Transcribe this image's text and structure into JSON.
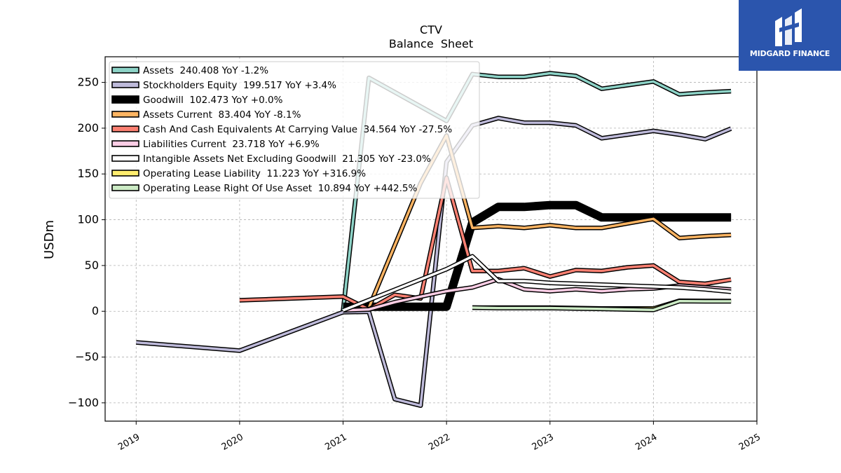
{
  "logo": {
    "text": "MIDGARD FINANCE"
  },
  "chart_data": {
    "type": "line",
    "title": "CTV",
    "subtitle": "Balance  Sheet",
    "xlabel": "",
    "ylabel": "USDm",
    "xlim": [
      2018.7,
      2025.0
    ],
    "ylim": [
      -120,
      278
    ],
    "x_ticks": [
      "2019",
      "2020",
      "2021",
      "2022",
      "2023",
      "2024",
      "2025"
    ],
    "y_ticks": [
      -100,
      -50,
      0,
      50,
      100,
      150,
      200,
      250
    ],
    "y_tick_labels": [
      "−100",
      "−50",
      "0",
      "50",
      "100",
      "150",
      "200",
      "250"
    ],
    "grid": true,
    "legend_position": "top-left",
    "series": [
      {
        "name": "Assets",
        "legend": "Assets  240.408 YoY -1.2%",
        "color": "#8dd3c7",
        "width": 3.5,
        "points": [
          [
            2021.0,
            0.5
          ],
          [
            2021.25,
            255
          ],
          [
            2022.0,
            208
          ],
          [
            2022.25,
            259
          ],
          [
            2022.5,
            256
          ],
          [
            2022.75,
            256
          ],
          [
            2023.0,
            260
          ],
          [
            2023.25,
            257
          ],
          [
            2023.5,
            243
          ],
          [
            2023.75,
            247
          ],
          [
            2024.0,
            251
          ],
          [
            2024.25,
            237
          ],
          [
            2024.5,
            239
          ],
          [
            2024.75,
            240.408
          ]
        ]
      },
      {
        "name": "Stockholders Equity",
        "legend": "Stockholders Equity  199.517 YoY +3.4%",
        "color": "#bebada",
        "width": 3.5,
        "points": [
          [
            2019.0,
            -34
          ],
          [
            2020.0,
            -43
          ],
          [
            2021.0,
            -1
          ],
          [
            2021.25,
            -0.5
          ],
          [
            2021.5,
            -96
          ],
          [
            2021.75,
            -103
          ],
          [
            2022.0,
            163
          ],
          [
            2022.25,
            203
          ],
          [
            2022.5,
            211
          ],
          [
            2022.75,
            206
          ],
          [
            2023.0,
            206
          ],
          [
            2023.25,
            203
          ],
          [
            2023.5,
            189
          ],
          [
            2023.75,
            193
          ],
          [
            2024.0,
            197
          ],
          [
            2024.25,
            193
          ],
          [
            2024.5,
            188
          ],
          [
            2024.75,
            199.517
          ]
        ]
      },
      {
        "name": "Goodwill",
        "legend": "Goodwill  102.473 YoY +0.0%",
        "color": "#000000",
        "width": 9,
        "points": [
          [
            2021.0,
            5
          ],
          [
            2021.25,
            5
          ],
          [
            2021.5,
            5
          ],
          [
            2021.75,
            5
          ],
          [
            2022.0,
            5
          ],
          [
            2022.25,
            97
          ],
          [
            2022.5,
            114
          ],
          [
            2022.75,
            114
          ],
          [
            2023.0,
            116
          ],
          [
            2023.25,
            116
          ],
          [
            2023.5,
            102.473
          ],
          [
            2023.75,
            102.473
          ],
          [
            2024.0,
            102.473
          ],
          [
            2024.25,
            102.473
          ],
          [
            2024.5,
            102.473
          ],
          [
            2024.75,
            102.473
          ]
        ]
      },
      {
        "name": "Assets Current",
        "legend": "Assets Current  83.404 YoY -8.1%",
        "color": "#fdb462",
        "width": 3.5,
        "points": [
          [
            2021.25,
            4
          ],
          [
            2021.75,
            140
          ],
          [
            2022.0,
            192
          ],
          [
            2022.25,
            91
          ],
          [
            2022.5,
            93
          ],
          [
            2022.75,
            91
          ],
          [
            2023.0,
            94
          ],
          [
            2023.25,
            91
          ],
          [
            2023.5,
            91
          ],
          [
            2023.75,
            96
          ],
          [
            2024.0,
            101
          ],
          [
            2024.25,
            80
          ],
          [
            2024.5,
            82
          ],
          [
            2024.75,
            83.404
          ]
        ]
      },
      {
        "name": "Cash And Cash Equivalents At Carrying Value",
        "legend": "Cash And Cash Equivalents At Carrying Value  34.564 YoY -27.5%",
        "color": "#fb8072",
        "width": 3.5,
        "points": [
          [
            2020.0,
            12
          ],
          [
            2021.0,
            16
          ],
          [
            2021.25,
            2
          ],
          [
            2021.5,
            18
          ],
          [
            2021.75,
            14
          ],
          [
            2022.0,
            146
          ],
          [
            2022.25,
            44
          ],
          [
            2022.5,
            44
          ],
          [
            2022.75,
            47
          ],
          [
            2023.0,
            38
          ],
          [
            2023.25,
            45
          ],
          [
            2023.5,
            44
          ],
          [
            2023.75,
            48
          ],
          [
            2024.0,
            50
          ],
          [
            2024.25,
            32
          ],
          [
            2024.5,
            30
          ],
          [
            2024.75,
            34.564
          ]
        ]
      },
      {
        "name": "Liabilities Current",
        "legend": "Liabilities Current  23.718 YoY +6.9%",
        "color": "#fccde5",
        "width": 3.5,
        "points": [
          [
            2021.0,
            1
          ],
          [
            2021.25,
            2
          ],
          [
            2021.5,
            10
          ],
          [
            2021.75,
            16
          ],
          [
            2022.0,
            22
          ],
          [
            2022.25,
            26
          ],
          [
            2022.5,
            35
          ],
          [
            2022.75,
            24
          ],
          [
            2023.0,
            22
          ],
          [
            2023.25,
            24
          ],
          [
            2023.5,
            22
          ],
          [
            2023.75,
            24
          ],
          [
            2024.0,
            25
          ],
          [
            2024.25,
            28
          ],
          [
            2024.5,
            26
          ],
          [
            2024.75,
            23.718
          ]
        ]
      },
      {
        "name": "Intangible Assets Net Excluding Goodwill",
        "legend": "Intangible Assets Net Excluding Goodwill  21.305 YoY -23.0%",
        "color": "#ffffff",
        "width": 3.5,
        "points": [
          [
            2021.0,
            1
          ],
          [
            2022.0,
            46
          ],
          [
            2022.25,
            60
          ],
          [
            2022.5,
            33
          ],
          [
            2022.75,
            33
          ],
          [
            2023.0,
            31
          ],
          [
            2023.25,
            30
          ],
          [
            2023.5,
            29
          ],
          [
            2023.75,
            28
          ],
          [
            2024.0,
            27
          ],
          [
            2024.25,
            26
          ],
          [
            2024.5,
            24
          ],
          [
            2024.75,
            21.305
          ]
        ]
      },
      {
        "name": "Operating Lease Liability",
        "legend": "Operating Lease Liability  11.223 YoY +316.9%",
        "color": "#ffed6f",
        "width": 3.5,
        "points": [
          [
            2022.25,
            4
          ],
          [
            2022.5,
            4
          ],
          [
            2022.75,
            4
          ],
          [
            2023.0,
            4
          ],
          [
            2023.25,
            3.5
          ],
          [
            2023.5,
            3
          ],
          [
            2023.75,
            3
          ],
          [
            2024.0,
            3
          ],
          [
            2024.25,
            11.5
          ],
          [
            2024.5,
            11.3
          ],
          [
            2024.75,
            11.223
          ]
        ]
      },
      {
        "name": "Operating Lease Right Of Use Asset",
        "legend": "Operating Lease Right Of Use Asset  10.894 YoY +442.5%",
        "color": "#ccebc5",
        "width": 3.5,
        "points": [
          [
            2022.25,
            4
          ],
          [
            2022.5,
            3.5
          ],
          [
            2022.75,
            3.5
          ],
          [
            2023.0,
            3.5
          ],
          [
            2023.25,
            3
          ],
          [
            2023.5,
            2.5
          ],
          [
            2023.75,
            2
          ],
          [
            2024.0,
            1.5
          ],
          [
            2024.25,
            11
          ],
          [
            2024.5,
            10.9
          ],
          [
            2024.75,
            10.894
          ]
        ]
      }
    ]
  }
}
